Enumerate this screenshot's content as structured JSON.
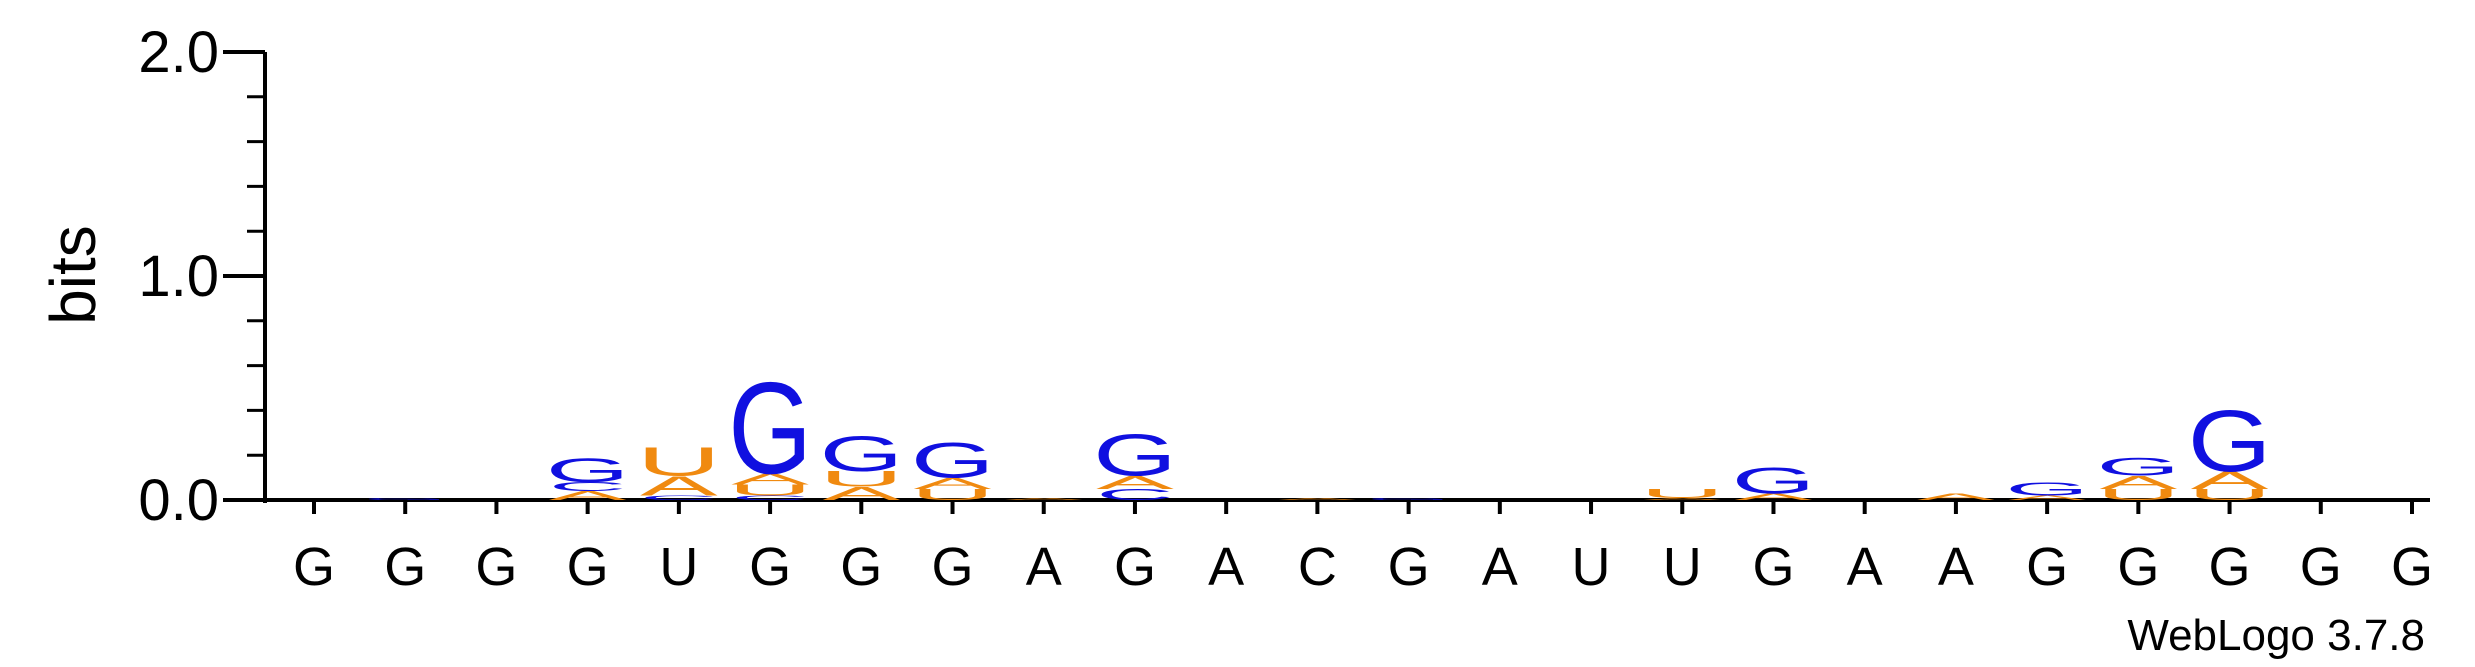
{
  "chart_data": {
    "type": "sequence-logo",
    "ylabel": "bits",
    "ylim": [
      0,
      2.0
    ],
    "yticks": [
      "0.0",
      "1.0",
      "2.0"
    ],
    "footer": "WebLogo 3.7.8",
    "consensus": [
      "G",
      "G",
      "G",
      "G",
      "U",
      "G",
      "G",
      "G",
      "A",
      "G",
      "A",
      "C",
      "G",
      "A",
      "U",
      "U",
      "G",
      "A",
      "A",
      "G",
      "G",
      "G",
      "G",
      "G"
    ],
    "colors": {
      "G": "#1010e0",
      "A": "#f08a10",
      "U": "#f08a10",
      "C": "#1010e0"
    },
    "positions": [
      [],
      [
        {
          "letter": "G",
          "bits": 0.01
        }
      ],
      [],
      [
        {
          "letter": "A",
          "bits": 0.04
        },
        {
          "letter": "C",
          "bits": 0.04
        },
        {
          "letter": "G",
          "bits": 0.11
        }
      ],
      [
        {
          "letter": "C",
          "bits": 0.02
        },
        {
          "letter": "A",
          "bits": 0.09
        },
        {
          "letter": "U",
          "bits": 0.13
        }
      ],
      [
        {
          "letter": "C",
          "bits": 0.02
        },
        {
          "letter": "U",
          "bits": 0.05
        },
        {
          "letter": "A",
          "bits": 0.05
        },
        {
          "letter": "G",
          "bits": 0.42
        }
      ],
      [
        {
          "letter": "A",
          "bits": 0.06
        },
        {
          "letter": "U",
          "bits": 0.07
        },
        {
          "letter": "G",
          "bits": 0.16
        }
      ],
      [
        {
          "letter": "U",
          "bits": 0.05
        },
        {
          "letter": "A",
          "bits": 0.05
        },
        {
          "letter": "G",
          "bits": 0.16
        }
      ],
      [
        {
          "letter": "A",
          "bits": 0.01
        }
      ],
      [
        {
          "letter": "C",
          "bits": 0.05
        },
        {
          "letter": "A",
          "bits": 0.06
        },
        {
          "letter": "G",
          "bits": 0.19
        }
      ],
      [],
      [
        {
          "letter": "A",
          "bits": 0.01
        }
      ],
      [
        {
          "letter": "G",
          "bits": 0.01
        }
      ],
      [],
      [],
      [
        {
          "letter": "A",
          "bits": 0.01
        },
        {
          "letter": "U",
          "bits": 0.04
        }
      ],
      [
        {
          "letter": "A",
          "bits": 0.03
        },
        {
          "letter": "G",
          "bits": 0.12
        }
      ],
      [],
      [
        {
          "letter": "A",
          "bits": 0.03
        }
      ],
      [
        {
          "letter": "A",
          "bits": 0.02
        },
        {
          "letter": "G",
          "bits": 0.06
        }
      ],
      [
        {
          "letter": "U",
          "bits": 0.05
        },
        {
          "letter": "A",
          "bits": 0.06
        },
        {
          "letter": "G",
          "bits": 0.08
        }
      ],
      [
        {
          "letter": "U",
          "bits": 0.05
        },
        {
          "letter": "A",
          "bits": 0.08
        },
        {
          "letter": "G",
          "bits": 0.28
        }
      ],
      [],
      []
    ]
  }
}
